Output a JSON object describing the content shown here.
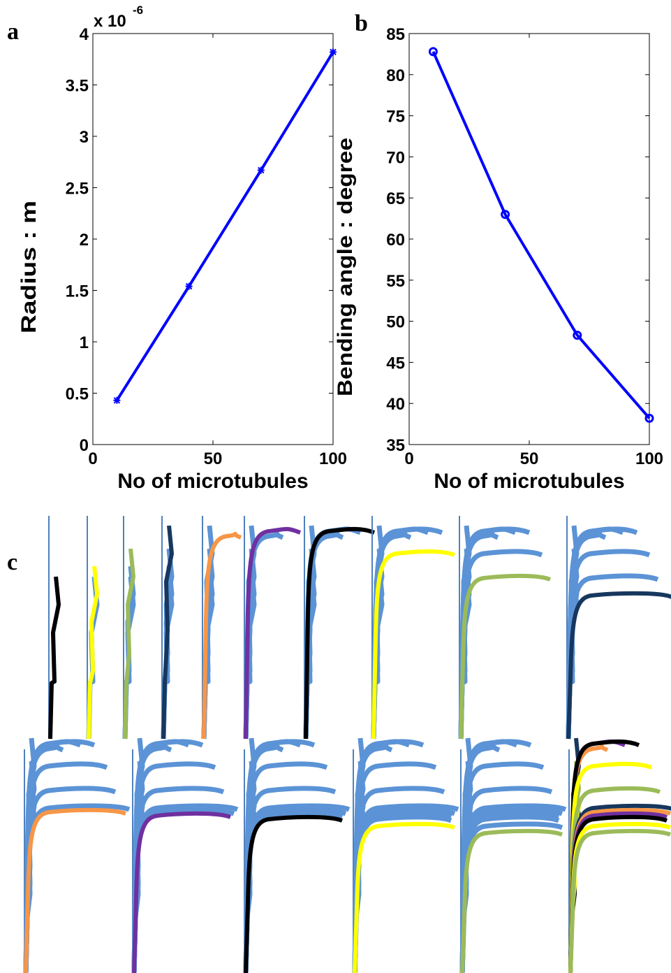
{
  "chart_data": [
    {
      "type": "line",
      "panel": "a",
      "x_label": "No of microtubules",
      "y_label": "Radius : m",
      "y_multiplier": {
        "base": "x 10",
        "exponent": "-6"
      },
      "x": [
        10,
        40,
        70,
        100
      ],
      "series": [
        {
          "color": "#0000ff",
          "marker": "star",
          "values": [
            0.43,
            1.54,
            2.67,
            3.82
          ]
        }
      ],
      "xlim": [
        0,
        100
      ],
      "xticks": [
        0,
        50,
        100
      ],
      "ylim": [
        0,
        4
      ],
      "yticks": [
        0,
        0.5,
        1,
        1.5,
        2,
        2.5,
        3,
        3.5,
        4
      ]
    },
    {
      "type": "line",
      "panel": "b",
      "x_label": "No of microtubules",
      "y_label": "Bending angle : degree",
      "x": [
        10,
        40,
        70,
        100
      ],
      "series": [
        {
          "color": "#0000ff",
          "marker": "circle",
          "values": [
            82.8,
            63,
            48.3,
            38.2
          ]
        }
      ],
      "xlim": [
        0,
        100
      ],
      "xticks": [
        0,
        50,
        100
      ],
      "ylim": [
        35,
        85
      ],
      "yticks": [
        35,
        40,
        45,
        50,
        55,
        60,
        65,
        70,
        75,
        80,
        85
      ]
    }
  ],
  "panel_c": {
    "label": "c"
  }
}
